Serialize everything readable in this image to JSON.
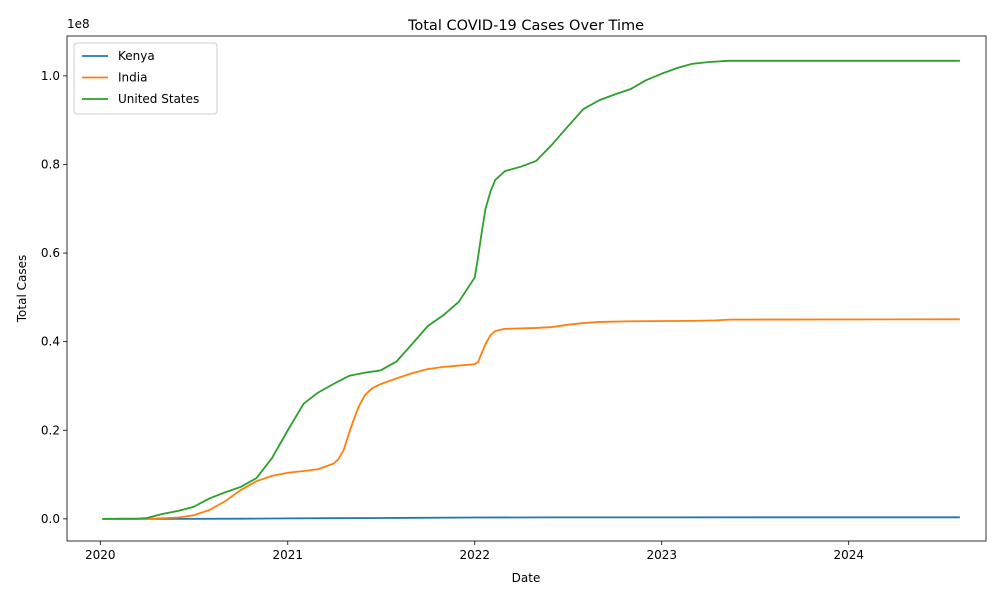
{
  "chart_data": {
    "type": "line",
    "title": "Total COVID-19 Cases Over Time",
    "xlabel": "Date",
    "ylabel": "Total Cases",
    "y_offset_label": "1e8",
    "xlim": [
      "2019-10-28",
      "2024-09-25"
    ],
    "ylim": [
      -5000000,
      109000000
    ],
    "x_ticks": [
      {
        "date": "2020-01-01",
        "label": "2020"
      },
      {
        "date": "2021-01-01",
        "label": "2021"
      },
      {
        "date": "2022-01-01",
        "label": "2022"
      },
      {
        "date": "2023-01-01",
        "label": "2023"
      },
      {
        "date": "2024-01-01",
        "label": "2024"
      }
    ],
    "y_ticks": [
      {
        "value": 0,
        "label": "0.0"
      },
      {
        "value": 20000000,
        "label": "0.2"
      },
      {
        "value": 40000000,
        "label": "0.4"
      },
      {
        "value": 60000000,
        "label": "0.6"
      },
      {
        "value": 80000000,
        "label": "0.8"
      },
      {
        "value": 100000000,
        "label": "1.0"
      }
    ],
    "grid": false,
    "legend_position": "top-left",
    "series": [
      {
        "name": "Kenya",
        "color": "#1f77b4",
        "points": [
          [
            "2020-01-05",
            0
          ],
          [
            "2020-06-01",
            2000
          ],
          [
            "2020-10-01",
            40000
          ],
          [
            "2021-01-01",
            100000
          ],
          [
            "2021-04-01",
            150000
          ],
          [
            "2021-08-01",
            210000
          ],
          [
            "2022-01-01",
            300000
          ],
          [
            "2022-06-01",
            330000
          ],
          [
            "2023-01-01",
            342000
          ],
          [
            "2024-08-05",
            344000
          ]
        ]
      },
      {
        "name": "India",
        "color": "#ff7f0e",
        "points": [
          [
            "2020-01-05",
            0
          ],
          [
            "2020-04-01",
            2000
          ],
          [
            "2020-06-01",
            300000
          ],
          [
            "2020-07-01",
            800000
          ],
          [
            "2020-08-01",
            2000000
          ],
          [
            "2020-09-01",
            4000000
          ],
          [
            "2020-10-01",
            6500000
          ],
          [
            "2020-11-01",
            8500000
          ],
          [
            "2020-12-01",
            9700000
          ],
          [
            "2021-01-01",
            10400000
          ],
          [
            "2021-02-01",
            10800000
          ],
          [
            "2021-03-01",
            11200000
          ],
          [
            "2021-04-01",
            12500000
          ],
          [
            "2021-04-10",
            13500000
          ],
          [
            "2021-04-20",
            15500000
          ],
          [
            "2021-05-01",
            19500000
          ],
          [
            "2021-05-10",
            22500000
          ],
          [
            "2021-05-20",
            25500000
          ],
          [
            "2021-06-01",
            28000000
          ],
          [
            "2021-06-15",
            29500000
          ],
          [
            "2021-07-01",
            30400000
          ],
          [
            "2021-08-01",
            31700000
          ],
          [
            "2021-09-01",
            32900000
          ],
          [
            "2021-10-01",
            33800000
          ],
          [
            "2021-11-01",
            34300000
          ],
          [
            "2021-12-01",
            34600000
          ],
          [
            "2022-01-01",
            34900000
          ],
          [
            "2022-01-08",
            35500000
          ],
          [
            "2022-01-15",
            37500000
          ],
          [
            "2022-01-22",
            39500000
          ],
          [
            "2022-02-01",
            41500000
          ],
          [
            "2022-02-10",
            42400000
          ],
          [
            "2022-03-01",
            42900000
          ],
          [
            "2022-05-01",
            43100000
          ],
          [
            "2022-06-01",
            43300000
          ],
          [
            "2022-07-01",
            43800000
          ],
          [
            "2022-08-01",
            44200000
          ],
          [
            "2022-09-01",
            44450000
          ],
          [
            "2022-11-01",
            44600000
          ],
          [
            "2023-03-01",
            44700000
          ],
          [
            "2023-04-15",
            44800000
          ],
          [
            "2023-05-15",
            44980000
          ],
          [
            "2024-08-05",
            45050000
          ]
        ]
      },
      {
        "name": "United States",
        "color": "#2ca02c",
        "points": [
          [
            "2020-01-05",
            0
          ],
          [
            "2020-03-15",
            50000
          ],
          [
            "2020-04-01",
            200000
          ],
          [
            "2020-05-01",
            1100000
          ],
          [
            "2020-06-01",
            1800000
          ],
          [
            "2020-07-01",
            2700000
          ],
          [
            "2020-08-01",
            4600000
          ],
          [
            "2020-09-01",
            6000000
          ],
          [
            "2020-10-01",
            7200000
          ],
          [
            "2020-11-01",
            9200000
          ],
          [
            "2020-12-01",
            13700000
          ],
          [
            "2021-01-01",
            20000000
          ],
          [
            "2021-02-01",
            26000000
          ],
          [
            "2021-03-01",
            28500000
          ],
          [
            "2021-04-01",
            30500000
          ],
          [
            "2021-05-01",
            32300000
          ],
          [
            "2021-06-01",
            33000000
          ],
          [
            "2021-07-01",
            33500000
          ],
          [
            "2021-08-01",
            35500000
          ],
          [
            "2021-09-01",
            39500000
          ],
          [
            "2021-10-01",
            43500000
          ],
          [
            "2021-11-01",
            46000000
          ],
          [
            "2021-12-01",
            49000000
          ],
          [
            "2022-01-01",
            54500000
          ],
          [
            "2022-01-08",
            59500000
          ],
          [
            "2022-01-15",
            65000000
          ],
          [
            "2022-01-22",
            70000000
          ],
          [
            "2022-02-01",
            74000000
          ],
          [
            "2022-02-10",
            76500000
          ],
          [
            "2022-03-01",
            78500000
          ],
          [
            "2022-04-01",
            79500000
          ],
          [
            "2022-05-01",
            80800000
          ],
          [
            "2022-06-01",
            84500000
          ],
          [
            "2022-07-01",
            88500000
          ],
          [
            "2022-08-01",
            92500000
          ],
          [
            "2022-09-01",
            94500000
          ],
          [
            "2022-10-01",
            95800000
          ],
          [
            "2022-11-01",
            97000000
          ],
          [
            "2022-12-01",
            99000000
          ],
          [
            "2023-01-01",
            100500000
          ],
          [
            "2023-02-01",
            101800000
          ],
          [
            "2023-03-01",
            102700000
          ],
          [
            "2023-04-01",
            103100000
          ],
          [
            "2023-05-10",
            103400000
          ],
          [
            "2024-08-05",
            103400000
          ]
        ]
      }
    ]
  }
}
